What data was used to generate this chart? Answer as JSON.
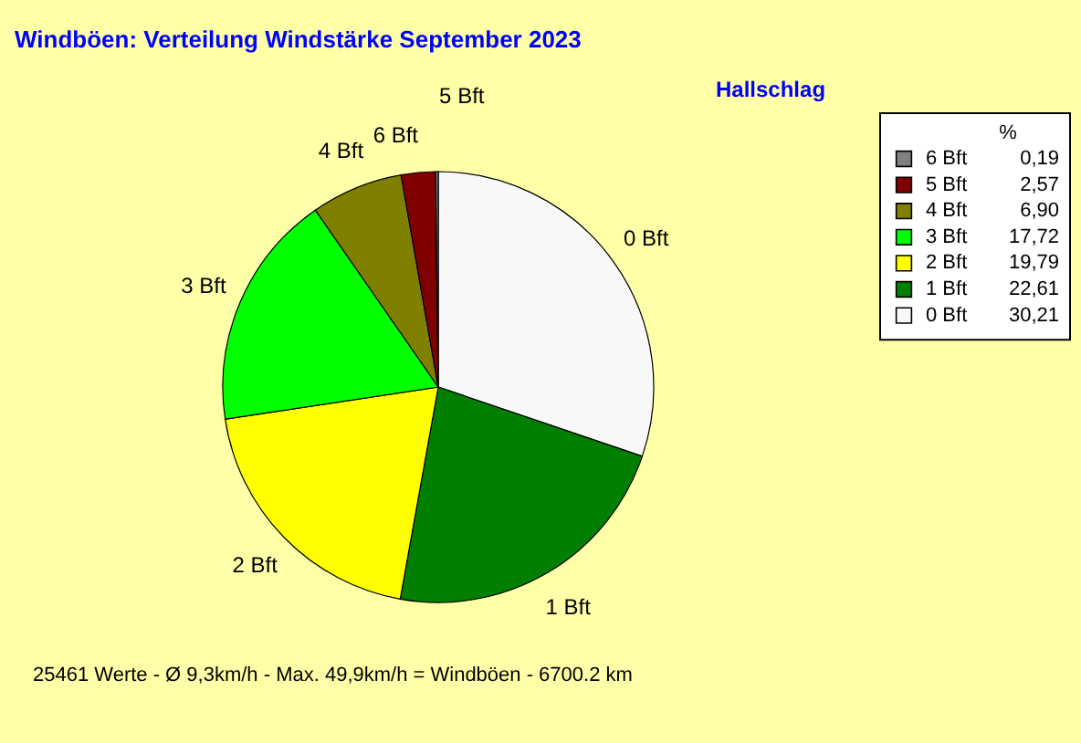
{
  "chart_data": {
    "type": "pie",
    "title": "Windböen: Verteilung Windstärke  September 2023",
    "subtitle": "Hallschlag",
    "categories": [
      "0 Bft",
      "1 Bft",
      "2 Bft",
      "3 Bft",
      "4 Bft",
      "5 Bft",
      "6 Bft"
    ],
    "values": [
      30.21,
      22.61,
      19.79,
      17.72,
      6.9,
      2.57,
      0.19
    ],
    "value_labels": [
      "30,21",
      "22,61",
      "19,79",
      "17,72",
      "6,90",
      "2,57",
      "0,19"
    ],
    "colors": [
      "#f8f8f8",
      "#007f00",
      "#ffff00",
      "#00ff00",
      "#808000",
      "#800000",
      "#808080"
    ],
    "legend": "top right",
    "legend_title": "%",
    "annotations": [
      "25461 Werte   -   Ø 9,3km/h  -  Max. 49,9km/h = Windböen   -   6700.2 km"
    ]
  }
}
